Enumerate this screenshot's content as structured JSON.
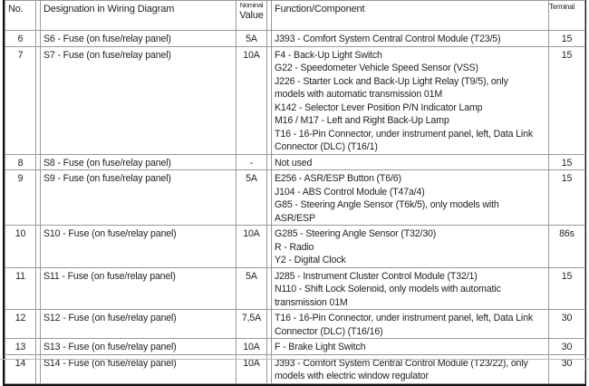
{
  "header": {
    "no": "No.",
    "designation": "Designation in Wiring Diagram",
    "value_small": "Nominal",
    "value": "Value",
    "function": "Function/Component",
    "terminal": "Terminal"
  },
  "rows": [
    {
      "no": "6",
      "designation": "S6 - Fuse (on fuse/relay panel)",
      "value": "5A",
      "function": [
        "J393 - Comfort System Central Control Module (T23/5)"
      ],
      "terminal": "15"
    },
    {
      "no": "7",
      "designation": "S7 - Fuse (on fuse/relay panel)",
      "value": "10A",
      "function": [
        "F4 - Back-Up Light Switch",
        "G22 - Speedometer Vehicle Speed Sensor (VSS)",
        "J226 - Starter Lock and Back-Up Light Relay (T9/5), only",
        "models with automatic transmission 01M",
        "K142 - Selector Lever Position P/N Indicator Lamp",
        "M16 / M17 - Left and Right Back-Up Lamp",
        "T16 - 16-Pin Connector, under instrument panel, left, Data Link",
        "Connector (DLC) (T16/1)"
      ],
      "terminal": "15"
    },
    {
      "no": "8",
      "designation": "S8 - Fuse (on fuse/relay panel)",
      "value": "-",
      "function": [
        "Not used"
      ],
      "terminal": "15"
    },
    {
      "no": "9",
      "designation": "S9 - Fuse (on fuse/relay panel)",
      "value": "5A",
      "function": [
        "E256 - ASR/ESP Button (T6/6)",
        "J104 - ABS Control Module (T47a/4)",
        "G85 - Steering Angle Sensor (T6k/5), only models with",
        "ASR/ESP"
      ],
      "terminal": "15"
    },
    {
      "no": "10",
      "designation": "S10 - Fuse (on fuse/relay panel)",
      "value": "10A",
      "function": [
        "G285 - Steering Angle Sensor (T32/30)",
        "R - Radio",
        "Y2 - Digital Clock"
      ],
      "terminal": "86s"
    },
    {
      "no": "11",
      "designation": "S11 - Fuse (on fuse/relay panel)",
      "value": "5A",
      "function": [
        "J285 - Instrument Cluster Control Module (T32/1)",
        "N110 - Shift Lock Solenoid, only models with automatic",
        "transmission 01M"
      ],
      "terminal": "15"
    },
    {
      "no": "12",
      "designation": "S12 - Fuse (on fuse/relay panel)",
      "value": "7,5A",
      "function": [
        "T16 - 16-Pin Connector, under instrument panel, left, Data Link",
        "Connector (DLC) (T16/16)"
      ],
      "terminal": "30"
    },
    {
      "no": "13",
      "designation": "S13 - Fuse (on fuse/relay panel)",
      "value": "10A",
      "function": [
        "F - Brake Light Switch"
      ],
      "terminal": "30"
    },
    {
      "no": "14",
      "designation": "S14 - Fuse (on fuse/relay panel)",
      "value": "10A",
      "function": [
        "J393 - Comfort System Central Control Module (T23/22), only",
        "models with electric window regulator"
      ],
      "terminal": "30"
    }
  ]
}
